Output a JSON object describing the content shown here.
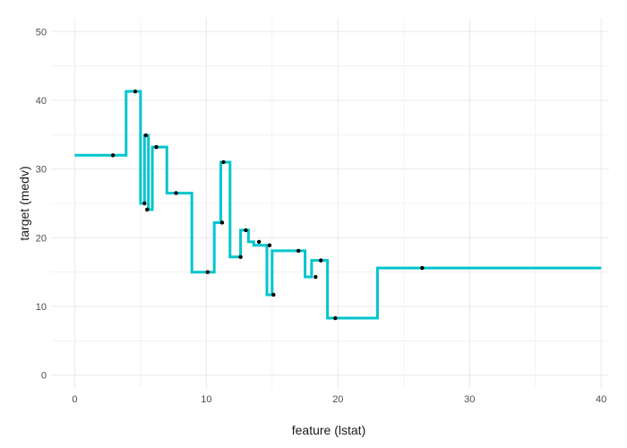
{
  "chart_data": {
    "type": "line",
    "title": "",
    "xlabel": "feature (lstat)",
    "ylabel": "target (medv)",
    "xlim": [
      -1.8,
      40.6
    ],
    "ylim": [
      -2.0,
      52.0
    ],
    "x_ticks": [
      0,
      10,
      20,
      30,
      40
    ],
    "y_ticks": [
      0,
      10,
      20,
      30,
      40,
      50
    ],
    "grid": true,
    "colors": {
      "line": "#00c5cd",
      "points": "#000000",
      "grid": "#ebebeb"
    },
    "series": [
      {
        "style": "step",
        "x": [
          0,
          3.9,
          3.9,
          5.0,
          5.0,
          5.3,
          5.3,
          5.6,
          5.6,
          5.9,
          5.9,
          7.0,
          7.0,
          8.9,
          8.9,
          10.6,
          10.6,
          11.1,
          11.1,
          11.8,
          11.8,
          12.6,
          12.6,
          13.2,
          13.2,
          13.6,
          13.6,
          14.6,
          14.6,
          15.0,
          15.0,
          16.0,
          16.0,
          17.5,
          17.5,
          18.0,
          18.0,
          18.6,
          18.6,
          19.2,
          19.2,
          23.0,
          23.0,
          40.0
        ],
        "y": [
          32.0,
          32.0,
          41.3,
          41.3,
          25.0,
          25.0,
          34.9,
          34.9,
          24.1,
          24.1,
          33.2,
          33.2,
          26.5,
          26.5,
          15.0,
          15.0,
          22.2,
          22.2,
          31.0,
          31.0,
          17.2,
          17.2,
          21.1,
          21.1,
          19.4,
          19.4,
          18.9,
          18.9,
          11.7,
          11.7,
          18.1,
          18.1,
          18.1,
          18.1,
          14.3,
          14.3,
          16.7,
          16.7,
          16.7,
          16.7,
          8.3,
          8.3,
          15.6,
          15.6
        ]
      },
      {
        "style": "points",
        "x": [
          2.9,
          4.6,
          5.3,
          5.4,
          5.5,
          6.2,
          7.7,
          10.1,
          11.2,
          11.3,
          12.6,
          13.0,
          14.0,
          14.8,
          15.1,
          17.0,
          18.3,
          18.7,
          19.8,
          26.4
        ],
        "y": [
          32.0,
          41.3,
          25.0,
          34.9,
          24.1,
          33.2,
          26.5,
          15.0,
          22.2,
          31.0,
          17.2,
          21.1,
          19.4,
          18.9,
          11.7,
          18.1,
          14.3,
          16.7,
          8.3,
          15.6
        ]
      }
    ]
  }
}
